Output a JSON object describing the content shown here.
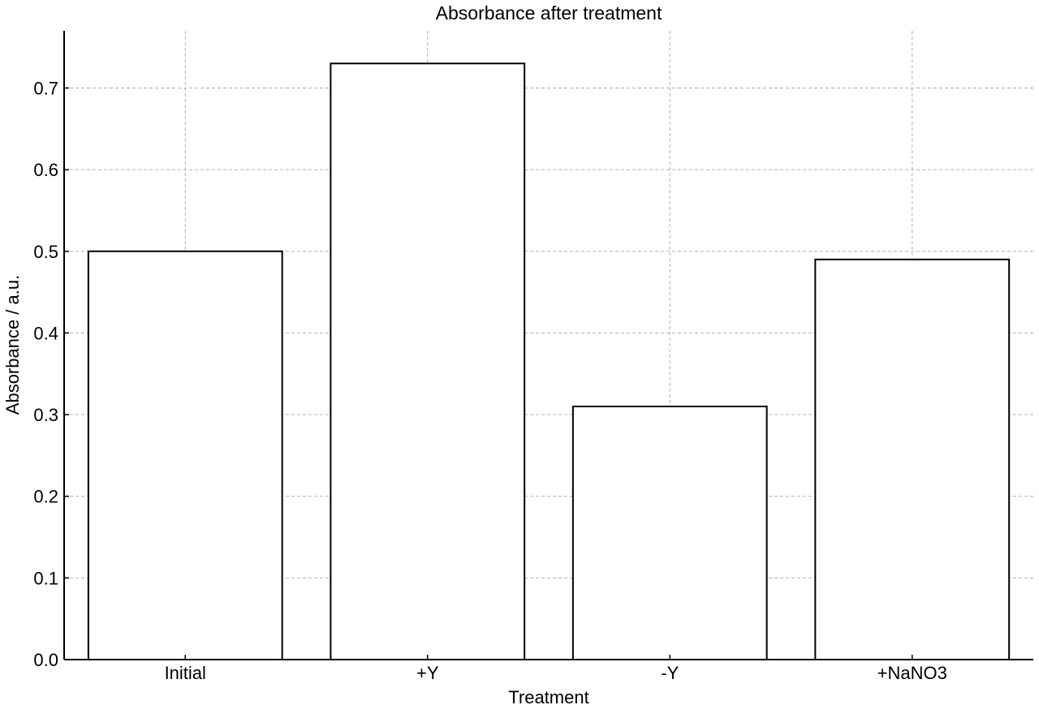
{
  "chart_data": {
    "type": "bar",
    "title": "Absorbance after treatment",
    "xlabel": "Treatment",
    "ylabel": "Absorbance / a.u.",
    "categories": [
      "Initial",
      "+Y",
      "-Y",
      "+NaNO3"
    ],
    "values": [
      0.5,
      0.73,
      0.31,
      0.49
    ],
    "ylim": [
      0,
      0.77
    ],
    "yticks": [
      {
        "value": 0.0,
        "label": "0.0"
      },
      {
        "value": 0.1,
        "label": "0.1"
      },
      {
        "value": 0.2,
        "label": "0.2"
      },
      {
        "value": 0.3,
        "label": "0.3"
      },
      {
        "value": 0.4,
        "label": "0.4"
      },
      {
        "value": 0.5,
        "label": "0.5"
      },
      {
        "value": 0.6,
        "label": "0.6"
      },
      {
        "value": 0.7,
        "label": "0.7"
      }
    ],
    "grid": true,
    "legend": "none",
    "bar_fill": "#ffffff",
    "bar_edge": "#000000",
    "grid_color": "#b0b0b0"
  }
}
